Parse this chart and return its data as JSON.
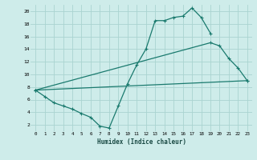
{
  "xlabel": "Humidex (Indice chaleur)",
  "background_color": "#ceecea",
  "grid_color": "#aad4d0",
  "line_color": "#1a7a6e",
  "xlim": [
    -0.5,
    23.5
  ],
  "ylim": [
    1,
    21
  ],
  "line1_x": [
    0,
    1,
    2,
    3,
    4,
    5,
    6,
    7,
    8,
    9,
    10,
    11,
    12,
    13,
    14,
    15,
    16,
    17,
    18,
    19
  ],
  "line1_y": [
    7.5,
    6.5,
    5.5,
    5.0,
    4.5,
    3.8,
    3.2,
    1.8,
    1.5,
    5.0,
    8.5,
    11.5,
    14.0,
    18.5,
    18.5,
    19.0,
    19.2,
    20.5,
    19.0,
    16.5
  ],
  "line2_x": [
    0,
    19,
    20,
    21,
    22,
    23
  ],
  "line2_y": [
    7.5,
    15.0,
    14.5,
    12.5,
    11.0,
    9.0
  ],
  "line3_x": [
    0,
    23
  ],
  "line3_y": [
    7.5,
    9.0
  ],
  "xticks": [
    0,
    1,
    2,
    3,
    4,
    5,
    6,
    7,
    8,
    9,
    10,
    11,
    12,
    13,
    14,
    15,
    16,
    17,
    18,
    19,
    20,
    21,
    22,
    23
  ],
  "yticks": [
    2,
    4,
    6,
    8,
    10,
    12,
    14,
    16,
    18,
    20
  ]
}
